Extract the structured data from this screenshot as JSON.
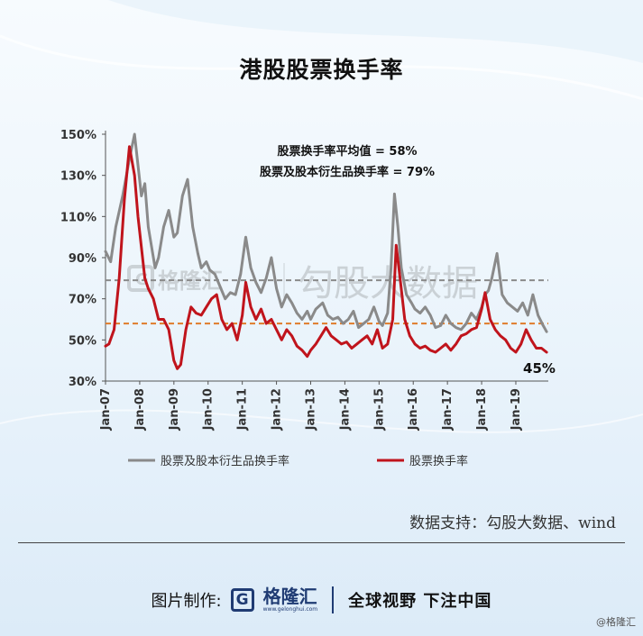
{
  "page": {
    "title": "港股股票换手率",
    "source": "数据支持：勾股大数据、wind",
    "footer": {
      "prefix": "图片制作:",
      "logo_glyph": "G",
      "logo_name": "格隆汇",
      "logo_url": "www.gelonghui.com",
      "slogan": "全球视野 下注中国"
    },
    "corner_mark": "@格隆汇",
    "watermark": {
      "name": "格隆汇",
      "right_text": "勾股大数据"
    }
  },
  "chart_data": {
    "type": "line",
    "x_labels": [
      "Jan-07",
      "Jan-08",
      "Jan-09",
      "Jan-10",
      "Jan-11",
      "Jan-12",
      "Jan-13",
      "Jan-14",
      "Jan-15",
      "Jan-16",
      "Jan-17",
      "Jan-18",
      "Jan-19"
    ],
    "x_range": [
      2007.0,
      2019.95
    ],
    "y_ticks": [
      "150%",
      "130%",
      "110%",
      "90%",
      "70%",
      "50%",
      "30%"
    ],
    "y_tick_values": [
      150,
      130,
      110,
      90,
      70,
      50,
      30
    ],
    "ylim": [
      30,
      150
    ],
    "colors": {
      "stock_deriv": "#8a8a8a",
      "stock": "#c0141c",
      "avg_line": "#e07b2a",
      "avg2_line": "#8a8a8a"
    },
    "reference_lines": [
      {
        "label": "股票换手率平均值 = 58%",
        "value": 58,
        "color": "#e07b2a"
      },
      {
        "label": "股票及股本衍生品换手率 = 79%",
        "value": 79,
        "color": "#8a8a8a"
      }
    ],
    "end_annotation": "45%",
    "series": [
      {
        "name": "股票及股本衍生品换手率",
        "x": [
          2007.0,
          2007.15,
          2007.3,
          2007.5,
          2007.7,
          2007.85,
          2007.95,
          2008.05,
          2008.15,
          2008.25,
          2008.35,
          2008.45,
          2008.55,
          2008.7,
          2008.85,
          2009.0,
          2009.1,
          2009.25,
          2009.4,
          2009.55,
          2009.7,
          2009.8,
          2009.95,
          2010.05,
          2010.2,
          2010.35,
          2010.5,
          2010.65,
          2010.8,
          2010.95,
          2011.1,
          2011.25,
          2011.4,
          2011.55,
          2011.7,
          2011.85,
          2012.0,
          2012.15,
          2012.3,
          2012.45,
          2012.6,
          2012.75,
          2012.9,
          2013.0,
          2013.15,
          2013.35,
          2013.5,
          2013.65,
          2013.8,
          2013.95,
          2014.1,
          2014.25,
          2014.4,
          2014.55,
          2014.7,
          2014.85,
          2015.0,
          2015.1,
          2015.25,
          2015.35,
          2015.45,
          2015.55,
          2015.65,
          2015.8,
          2015.95,
          2016.05,
          2016.2,
          2016.35,
          2016.5,
          2016.65,
          2016.8,
          2016.95,
          2017.1,
          2017.25,
          2017.4,
          2017.55,
          2017.7,
          2017.85,
          2018.0,
          2018.1,
          2018.2,
          2018.3,
          2018.45,
          2018.6,
          2018.75,
          2018.9,
          2019.05,
          2019.2,
          2019.35,
          2019.5,
          2019.65,
          2019.8,
          2019.9
        ],
        "values": [
          93,
          88,
          105,
          120,
          138,
          150,
          135,
          120,
          126,
          105,
          95,
          85,
          90,
          105,
          113,
          100,
          102,
          120,
          128,
          105,
          92,
          85,
          88,
          84,
          82,
          76,
          70,
          73,
          72,
          82,
          100,
          85,
          78,
          73,
          80,
          90,
          75,
          66,
          72,
          68,
          63,
          60,
          64,
          60,
          65,
          68,
          62,
          60,
          61,
          58,
          60,
          64,
          56,
          58,
          60,
          66,
          59,
          57,
          63,
          85,
          121,
          105,
          85,
          72,
          68,
          65,
          63,
          66,
          62,
          56,
          57,
          62,
          58,
          56,
          55,
          58,
          63,
          60,
          66,
          72,
          74,
          80,
          92,
          72,
          68,
          66,
          64,
          68,
          62,
          72,
          62,
          57,
          54
        ]
      },
      {
        "name": "股票换手率",
        "x": [
          2007.0,
          2007.1,
          2007.25,
          2007.4,
          2007.55,
          2007.7,
          2007.85,
          2007.95,
          2008.05,
          2008.15,
          2008.25,
          2008.4,
          2008.55,
          2008.7,
          2008.85,
          2009.0,
          2009.1,
          2009.2,
          2009.35,
          2009.5,
          2009.65,
          2009.8,
          2009.95,
          2010.1,
          2010.25,
          2010.4,
          2010.55,
          2010.7,
          2010.85,
          2011.0,
          2011.1,
          2011.25,
          2011.4,
          2011.55,
          2011.7,
          2011.85,
          2012.0,
          2012.15,
          2012.3,
          2012.45,
          2012.6,
          2012.75,
          2012.9,
          2013.0,
          2013.15,
          2013.3,
          2013.45,
          2013.6,
          2013.75,
          2013.9,
          2014.05,
          2014.2,
          2014.35,
          2014.5,
          2014.65,
          2014.8,
          2014.95,
          2015.1,
          2015.25,
          2015.4,
          2015.5,
          2015.6,
          2015.75,
          2015.9,
          2016.05,
          2016.2,
          2016.35,
          2016.5,
          2016.65,
          2016.8,
          2016.95,
          2017.1,
          2017.25,
          2017.4,
          2017.55,
          2017.7,
          2017.85,
          2018.0,
          2018.1,
          2018.25,
          2018.4,
          2018.55,
          2018.7,
          2018.85,
          2019.0,
          2019.15,
          2019.3,
          2019.45,
          2019.6,
          2019.75,
          2019.9
        ],
        "values": [
          47,
          48,
          55,
          80,
          118,
          144,
          130,
          110,
          95,
          80,
          75,
          70,
          60,
          60,
          55,
          40,
          36,
          38,
          55,
          66,
          63,
          62,
          66,
          70,
          72,
          60,
          55,
          58,
          50,
          62,
          78,
          66,
          60,
          65,
          58,
          60,
          55,
          50,
          55,
          52,
          47,
          45,
          42,
          45,
          48,
          52,
          56,
          52,
          50,
          48,
          49,
          46,
          48,
          50,
          52,
          48,
          55,
          46,
          48,
          60,
          96,
          82,
          60,
          52,
          48,
          46,
          47,
          45,
          44,
          46,
          48,
          45,
          48,
          52,
          53,
          55,
          56,
          65,
          73,
          60,
          55,
          52,
          50,
          46,
          44,
          48,
          55,
          50,
          46,
          46,
          44
        ]
      }
    ]
  }
}
